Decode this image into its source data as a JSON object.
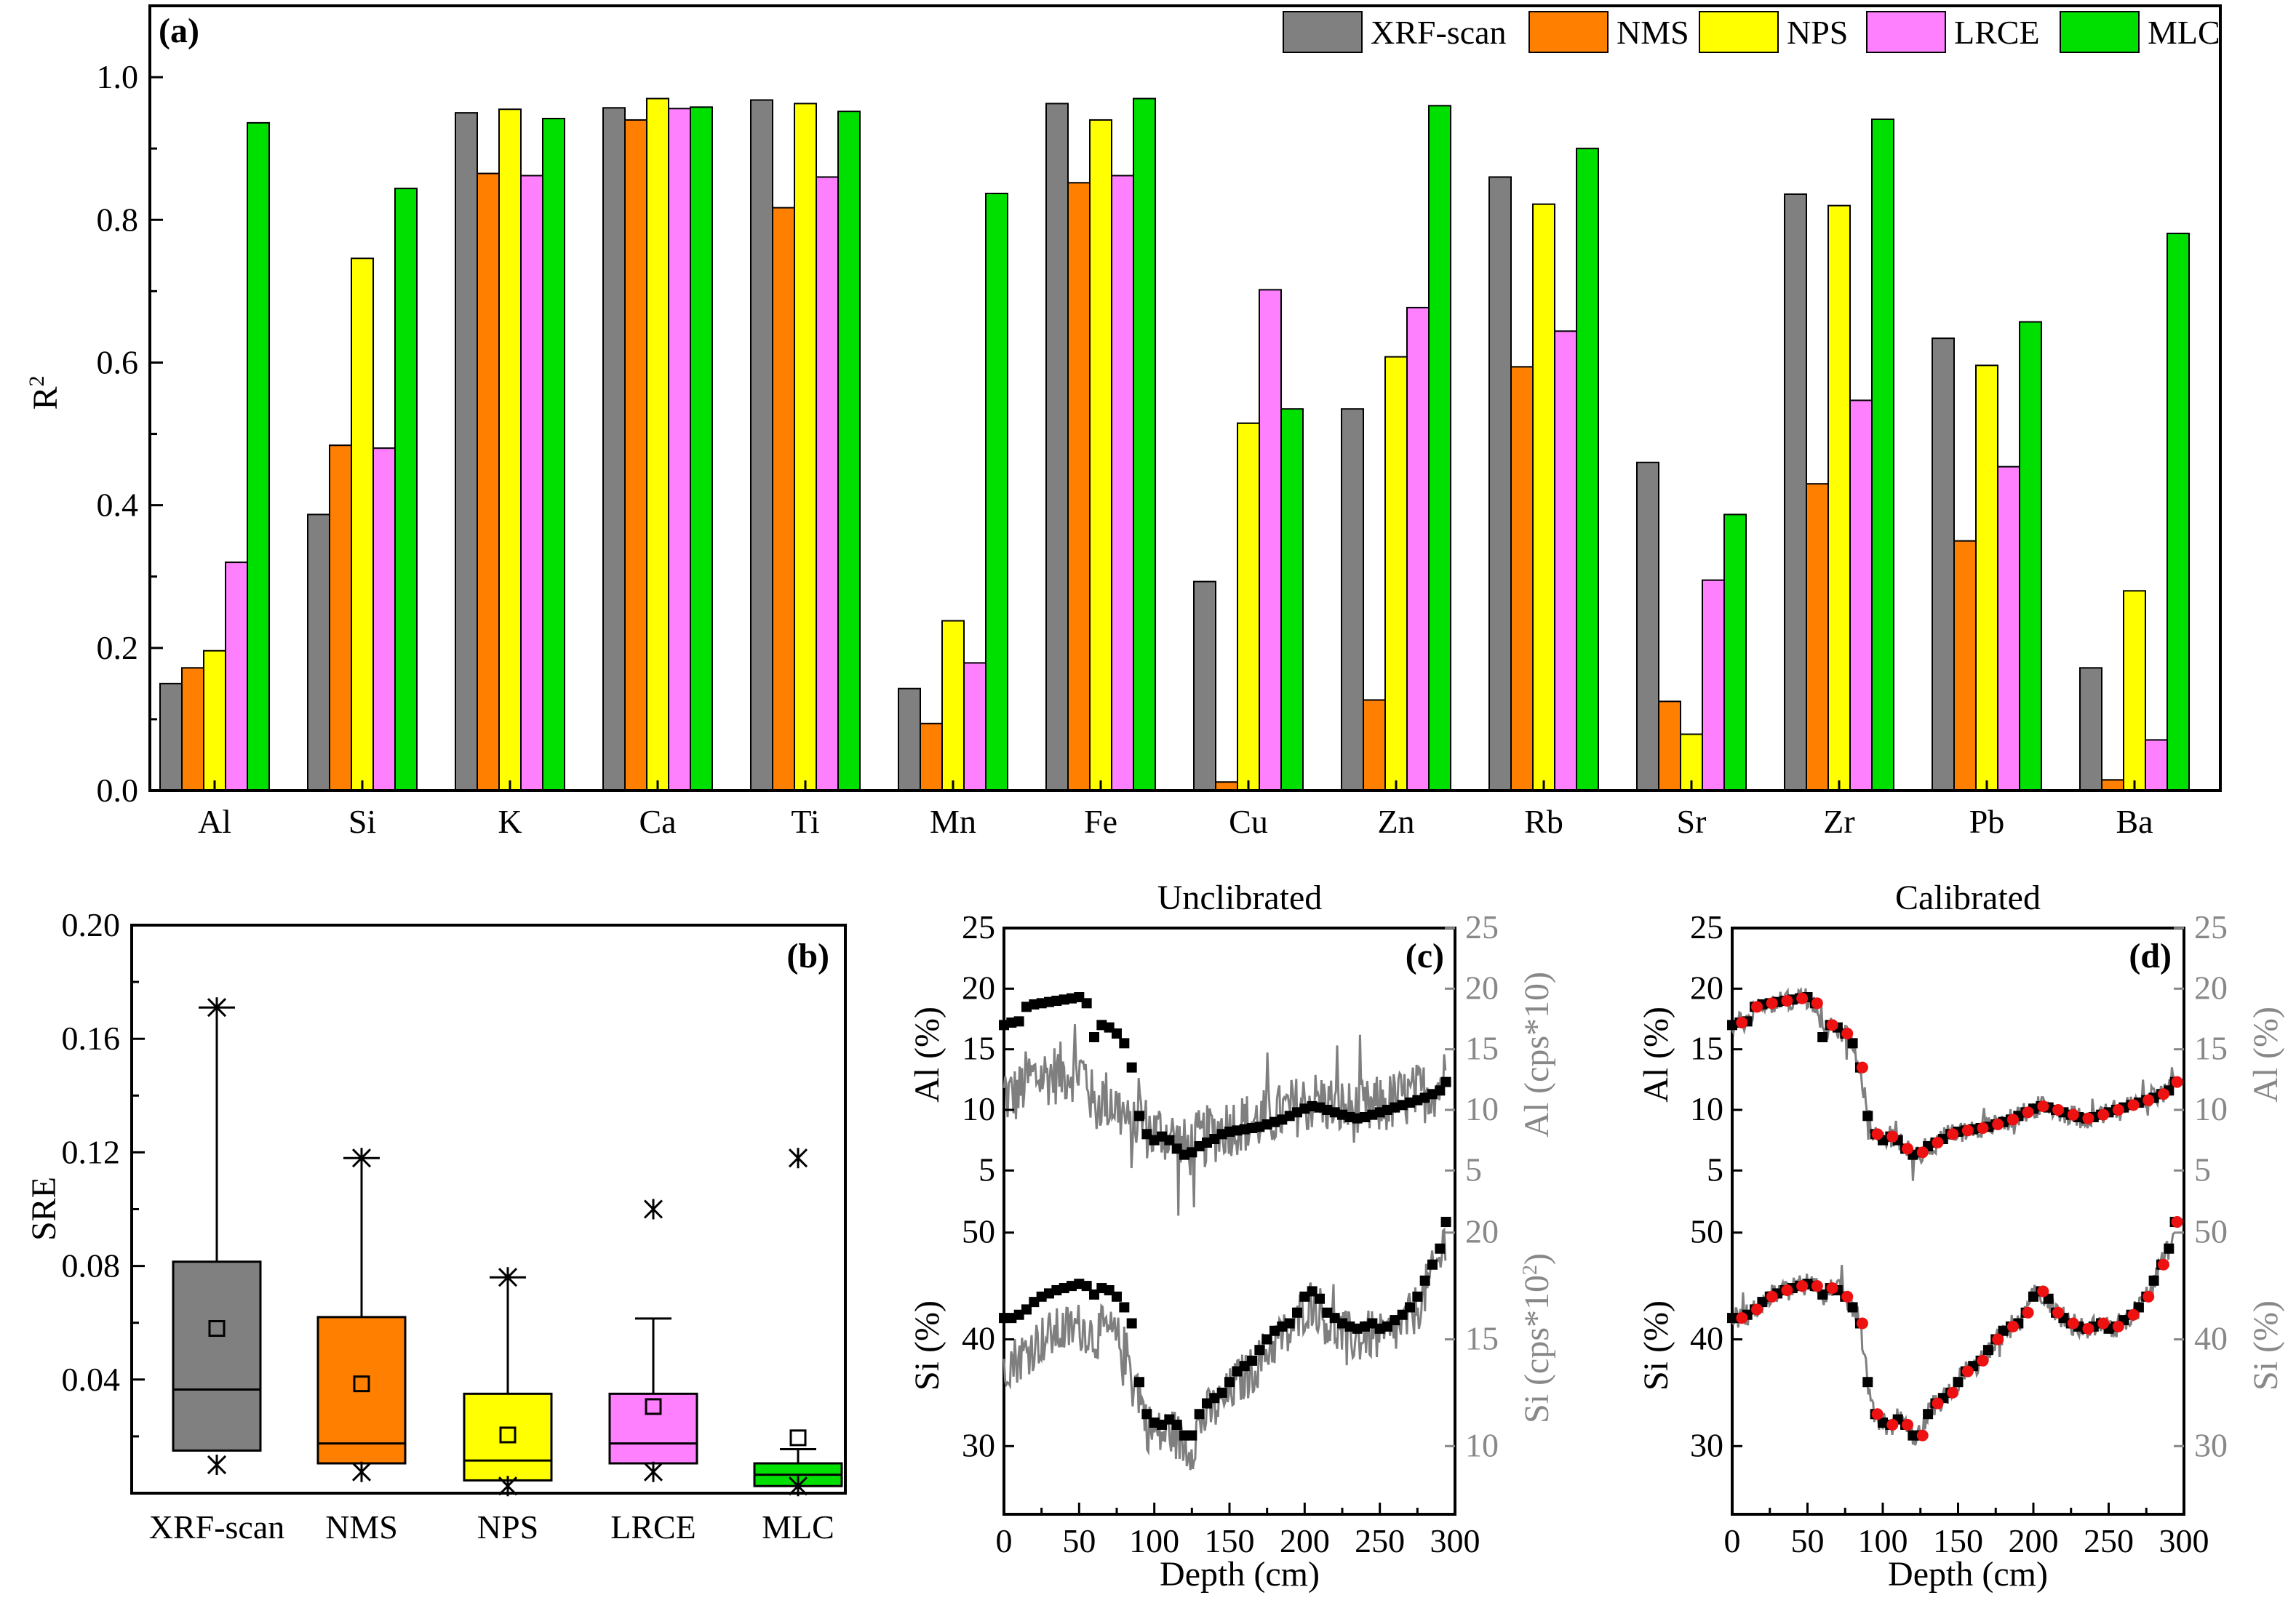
{
  "panel_a": {
    "tag": "(a)",
    "ylabel": "R",
    "ylabel_sup": "2",
    "series_colors": [
      "#808080",
      "#ff7f00",
      "#ffff00",
      "#ff80ff",
      "#00e000"
    ]
  },
  "panel_b": {
    "tag": "(b)",
    "ylabel": "SRE",
    "colors": [
      "#808080",
      "#ff7f00",
      "#ffff00",
      "#ff80ff",
      "#00e000"
    ]
  },
  "panel_c": {
    "tag": "(c)",
    "title": "Unclibrated",
    "xlabel": "Depth (cm)",
    "top_left_label": "Al (%)",
    "top_right_label": "Al (cps*10)",
    "bottom_left_label": "Si (%)",
    "bottom_right_label": "Si (cps*10",
    "bottom_right_sup": "2",
    "bottom_right_close": ")"
  },
  "panel_d": {
    "tag": "(d)",
    "title": "Calibrated",
    "xlabel": "Depth (cm)",
    "top_left_label": "Al (%)",
    "top_right_label": "Al (%)",
    "bottom_left_label": "Si (%)",
    "bottom_right_label": "Si (%)"
  },
  "chart_data": [
    {
      "type": "bar",
      "panel": "a",
      "ylabel": "R²",
      "ylim": [
        0,
        1.1
      ],
      "yticks": [
        "0.0",
        "0.2",
        "0.4",
        "0.6",
        "0.8",
        "1.0"
      ],
      "legend_position": "top-right",
      "categories": [
        "Al",
        "Si",
        "K",
        "Ca",
        "Ti",
        "Mn",
        "Fe",
        "Cu",
        "Zn",
        "Rb",
        "Sr",
        "Zr",
        "Pb",
        "Ba"
      ],
      "series": [
        {
          "name": "XRF-scan",
          "color": "#808080",
          "values": [
            0.15,
            0.387,
            0.95,
            0.957,
            0.968,
            0.143,
            0.963,
            0.293,
            0.535,
            0.86,
            0.46,
            0.836,
            0.634,
            0.172
          ]
        },
        {
          "name": "NMS",
          "color": "#ff7f00",
          "values": [
            0.172,
            0.484,
            0.865,
            0.94,
            0.817,
            0.094,
            0.852,
            0.012,
            0.127,
            0.594,
            0.125,
            0.43,
            0.35,
            0.015
          ]
        },
        {
          "name": "NPS",
          "color": "#ffff00",
          "values": [
            0.196,
            0.746,
            0.955,
            0.97,
            0.963,
            0.238,
            0.94,
            0.515,
            0.608,
            0.822,
            0.079,
            0.82,
            0.596,
            0.28
          ]
        },
        {
          "name": "LRCE",
          "color": "#ff80ff",
          "values": [
            0.32,
            0.48,
            0.862,
            0.956,
            0.86,
            0.179,
            0.862,
            0.702,
            0.677,
            0.644,
            0.295,
            0.547,
            0.454,
            0.071
          ]
        },
        {
          "name": "MLC",
          "color": "#00e000",
          "values": [
            0.936,
            0.844,
            0.942,
            0.958,
            0.952,
            0.837,
            0.97,
            0.535,
            0.96,
            0.9,
            0.387,
            0.941,
            0.657,
            0.781
          ]
        }
      ]
    },
    {
      "type": "box",
      "panel": "b",
      "ylabel": "SRE",
      "ylim": [
        0,
        0.2
      ],
      "yticks": [
        "0.04",
        "0.08",
        "0.12",
        "0.16",
        "0.20"
      ],
      "categories": [
        "XRF-scan",
        "NMS",
        "NPS",
        "LRCE",
        "MLC"
      ],
      "boxes": [
        {
          "q1": 0.015,
          "median": 0.0365,
          "q3": 0.0815,
          "whisker_low": 0.015,
          "whisker_high": 0.171,
          "mean": 0.058,
          "min": 0.01,
          "max": 0.171
        },
        {
          "q1": 0.0105,
          "median": 0.0175,
          "q3": 0.062,
          "whisker_low": 0.0105,
          "whisker_high": 0.118,
          "mean": 0.0385,
          "min": 0.0075,
          "max": 0.118
        },
        {
          "q1": 0.0045,
          "median": 0.0115,
          "q3": 0.035,
          "whisker_low": 0.0045,
          "whisker_high": 0.076,
          "mean": 0.0205,
          "min": 0.0025,
          "max": 0.076
        },
        {
          "q1": 0.0105,
          "median": 0.0175,
          "q3": 0.035,
          "whisker_low": 0.0105,
          "whisker_high": 0.0615,
          "mean": 0.0305,
          "min": 0.0075,
          "max": 0.1
        },
        {
          "q1": 0.0025,
          "median": 0.0065,
          "q3": 0.0105,
          "whisker_low": 0.0025,
          "whisker_high": 0.0155,
          "mean": 0.0195,
          "min": 0.0025,
          "max": 0.118
        }
      ]
    },
    {
      "type": "line",
      "panel": "c",
      "xlabel": "Depth (cm)",
      "xlim": [
        0,
        300
      ],
      "xticks": [
        0,
        50,
        100,
        150,
        200,
        250,
        300
      ],
      "top": {
        "left_axis": "Al (%)",
        "left_ylim": [
          1,
          25
        ],
        "left_ticks": [
          5,
          10,
          15,
          20,
          25
        ],
        "right_axis": "Al (cps*10)",
        "right_ylim": [
          1,
          25
        ],
        "right_ticks": [
          5,
          10,
          15,
          20,
          25
        ],
        "squares_depth": [
          0,
          5,
          10,
          15,
          20,
          25,
          30,
          35,
          40,
          45,
          50,
          55,
          60,
          65,
          70,
          75,
          80,
          85,
          90,
          95,
          100,
          105,
          110,
          115,
          120,
          125,
          130,
          135,
          140,
          145,
          150,
          155,
          160,
          165,
          170,
          175,
          180,
          185,
          190,
          195,
          200,
          205,
          210,
          215,
          220,
          225,
          230,
          235,
          240,
          245,
          250,
          255,
          260,
          265,
          270,
          275,
          280,
          285,
          290,
          294
        ],
        "squares_value": [
          17.0,
          17.2,
          17.3,
          18.5,
          18.7,
          18.8,
          18.9,
          19.0,
          19.1,
          19.2,
          19.3,
          18.8,
          16.0,
          17.0,
          16.8,
          16.3,
          15.5,
          13.5,
          9.5,
          8.0,
          7.5,
          7.8,
          7.5,
          6.8,
          6.3,
          6.5,
          7.0,
          7.3,
          7.6,
          8.0,
          8.2,
          8.3,
          8.4,
          8.5,
          8.6,
          8.8,
          9.0,
          9.2,
          9.5,
          9.8,
          10.1,
          10.3,
          10.2,
          10.0,
          9.8,
          9.6,
          9.4,
          9.3,
          9.4,
          9.6,
          9.8,
          10.0,
          10.2,
          10.4,
          10.6,
          10.8,
          11.0,
          11.3,
          11.6,
          12.3
        ]
      },
      "bottom": {
        "left_axis": "Si (%)",
        "left_ylim": [
          26,
          54
        ],
        "left_ticks": [
          30,
          40,
          50
        ],
        "right_axis": "Si (cps*10²)",
        "right_ylim": [
          8,
          22
        ],
        "right_ticks": [
          10,
          15,
          20
        ],
        "squares_depth": [
          0,
          5,
          10,
          15,
          20,
          25,
          30,
          35,
          40,
          45,
          50,
          55,
          60,
          65,
          70,
          75,
          80,
          85,
          90,
          95,
          100,
          105,
          110,
          115,
          120,
          125,
          130,
          135,
          140,
          145,
          150,
          155,
          160,
          165,
          170,
          175,
          180,
          185,
          190,
          195,
          200,
          205,
          210,
          215,
          220,
          225,
          230,
          235,
          240,
          245,
          250,
          255,
          260,
          265,
          270,
          275,
          280,
          285,
          290,
          294
        ],
        "squares_value": [
          42.0,
          42.0,
          42.3,
          42.8,
          43.5,
          44.0,
          44.3,
          44.6,
          44.8,
          45.0,
          45.2,
          45.0,
          44.2,
          44.8,
          44.6,
          44.0,
          43.0,
          41.5,
          36.0,
          33.0,
          32.2,
          32.0,
          32.5,
          32.0,
          31.0,
          31.0,
          33.0,
          34.0,
          34.5,
          35.0,
          36.0,
          37.0,
          37.5,
          38.0,
          39.0,
          40.0,
          40.8,
          41.2,
          41.5,
          42.5,
          44.0,
          44.5,
          43.8,
          42.5,
          42.0,
          41.5,
          41.2,
          41.0,
          41.2,
          41.5,
          41.0,
          41.2,
          41.8,
          42.3,
          43.0,
          44.0,
          45.5,
          47.0,
          48.5,
          51.0
        ]
      }
    },
    {
      "type": "line",
      "panel": "d",
      "xlabel": "Depth (cm)",
      "xlim": [
        0,
        300
      ],
      "xticks": [
        0,
        50,
        100,
        150,
        200,
        250,
        300
      ],
      "top": {
        "left_axis": "Al (%)",
        "left_ylim": [
          1,
          25
        ],
        "left_ticks": [
          5,
          10,
          15,
          20,
          25
        ],
        "right_axis": "Al (%)",
        "right_ticks": [
          5,
          10,
          15,
          20,
          25
        ]
      },
      "bottom": {
        "left_axis": "Si (%)",
        "left_ylim": [
          26,
          54
        ],
        "left_ticks": [
          30,
          40,
          50
        ],
        "right_axis": "Si (%)",
        "right_ticks": [
          30,
          40,
          50
        ]
      },
      "red_points_note": "Same depth/value series as black squares, shown at alternating depths"
    }
  ]
}
